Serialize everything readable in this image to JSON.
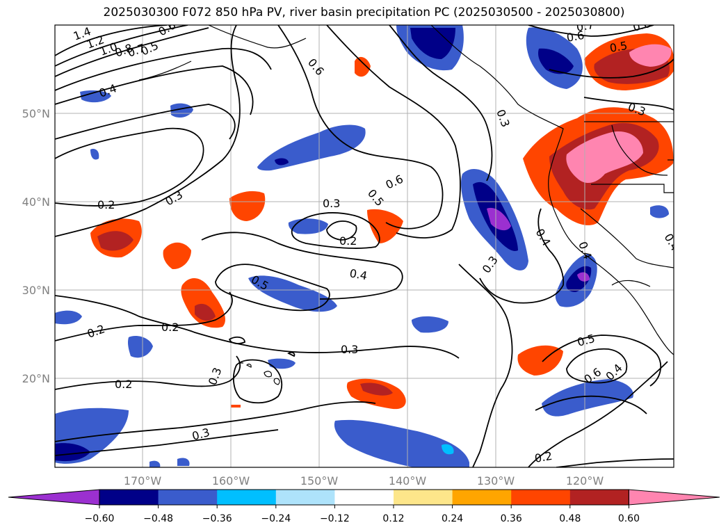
{
  "title": "2025030300 F072 850 hPa PV, river basin precipitation PC (2025030500 - 2025030800)",
  "axes": {
    "lon_ticks": [
      "170°W",
      "160°W",
      "150°W",
      "140°W",
      "130°W",
      "120°W"
    ],
    "lat_ticks": [
      "50°N",
      "40°N",
      "30°N",
      "20°N"
    ]
  },
  "contour_labels": [
    "1.4",
    "1.2",
    "1.0",
    "0.8",
    "0.7",
    "0.6",
    "0.5",
    "0.4",
    "0.3",
    "0.2",
    "0.6",
    "0.3",
    "0.5",
    "0.6",
    "0.3",
    "0.2",
    "0.4",
    "0.5",
    "0.3",
    "0.2",
    "0.2",
    "0.3",
    "0.3",
    "0.2",
    "0.3",
    "0.4",
    "0.5",
    "0.6",
    "0.4",
    "0.3",
    "0.4",
    "0.6",
    "0.7",
    "0.6",
    "0.5",
    "0.4",
    "0.2"
  ],
  "colorbar": {
    "colors": [
      "#9b30d0",
      "#000088",
      "#3a5ccc",
      "#00bfff",
      "#aee3fb",
      "#ffffff",
      "#fde68a",
      "#ffa500",
      "#ff4500",
      "#b22222",
      "#ff85b0"
    ],
    "tick_labels": [
      "−0.60",
      "−0.48",
      "−0.36",
      "−0.24",
      "−0.12",
      "0.12",
      "0.24",
      "0.36",
      "0.48",
      "0.60"
    ]
  },
  "colors": {
    "tick_text": "#808080",
    "gridline": "#b0b0b0"
  }
}
